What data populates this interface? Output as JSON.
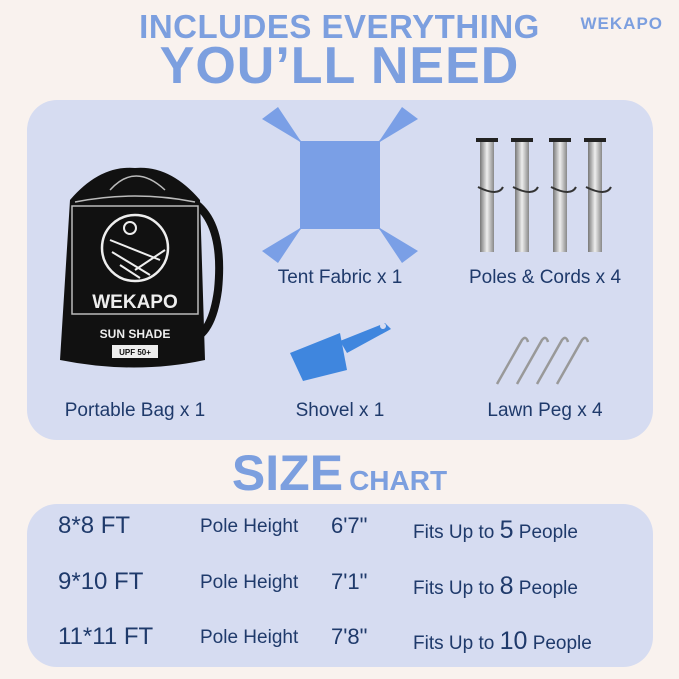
{
  "header": {
    "line1": "INCLUDES EVERYTHING",
    "line2": "YOU’LL NEED",
    "brand": "WEKAPO"
  },
  "items": [
    {
      "label": "Portable Bag x 1",
      "bag_text": {
        "brand": "WEKAPO",
        "product": "SUN SHADE",
        "badge": "UPF 50+"
      }
    },
    {
      "label": "Tent Fabric x 1"
    },
    {
      "label": "Poles & Cords x 4"
    },
    {
      "label": "Shovel x 1"
    },
    {
      "label": "Lawn Peg x 4"
    }
  ],
  "size_chart": {
    "title_big": "SIZE",
    "title_small": "CHART",
    "rows": [
      {
        "size": "8*8 FT",
        "pole_label": "Pole Height",
        "pole_height": "6'7\"",
        "fits_prefix": "Fits Up to",
        "people": "5",
        "fits_suffix": "People"
      },
      {
        "size": "9*10 FT",
        "pole_label": "Pole Height",
        "pole_height": "7'1\"",
        "fits_prefix": "Fits Up to",
        "people": "8",
        "fits_suffix": "People"
      },
      {
        "size": "11*11 FT",
        "pole_label": "Pole Height",
        "pole_height": "7'8\"",
        "fits_prefix": "Fits Up to",
        "people": "10",
        "fits_suffix": "People"
      }
    ]
  },
  "colors": {
    "accent": "#7c9fdf",
    "panel": "#d6dcf1",
    "text": "#1f3a6b",
    "background": "#f9f2ee",
    "fabric": "#7a9fe6",
    "shovel": "#3f86de"
  }
}
